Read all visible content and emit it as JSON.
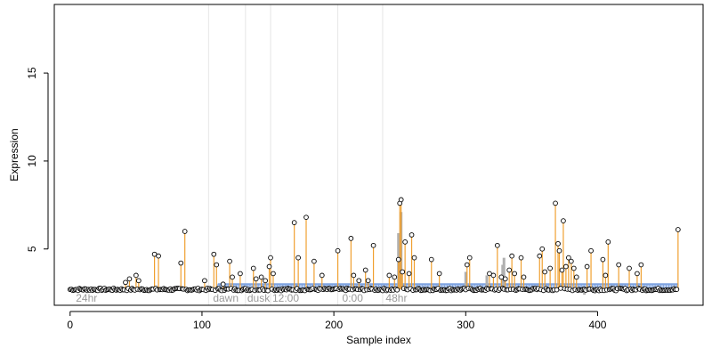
{
  "chart_data": {
    "type": "scatter",
    "xlabel": "Sample index",
    "ylabel": "Expression",
    "xlim": [
      -12,
      480
    ],
    "ylim": [
      1.8,
      18.9
    ],
    "xticks": [
      0,
      100,
      200,
      300,
      400
    ],
    "yticks": [
      5,
      10,
      15
    ],
    "grid": false,
    "baseline": 2.7,
    "background_step_value": 3.0,
    "background_step_start": 112,
    "region_dividers": [
      105,
      133,
      152,
      203,
      237
    ],
    "region_labels": [
      {
        "x": 3,
        "label": "24hr"
      },
      {
        "x": 107,
        "label": "dawn"
      },
      {
        "x": 133,
        "label": "dusk"
      },
      {
        "x": 152,
        "label": "12:00"
      },
      {
        "x": 205,
        "label": "0:00"
      },
      {
        "x": 238,
        "label": "48hr"
      }
    ],
    "peaks": [
      {
        "x": 42,
        "y": 3.1
      },
      {
        "x": 45,
        "y": 3.3
      },
      {
        "x": 50,
        "y": 3.5
      },
      {
        "x": 52,
        "y": 3.2
      },
      {
        "x": 64,
        "y": 4.7
      },
      {
        "x": 67,
        "y": 4.6
      },
      {
        "x": 84,
        "y": 4.2
      },
      {
        "x": 87,
        "y": 6.0
      },
      {
        "x": 102,
        "y": 3.2
      },
      {
        "x": 109,
        "y": 4.7
      },
      {
        "x": 111,
        "y": 4.1
      },
      {
        "x": 116,
        "y": 3.0
      },
      {
        "x": 121,
        "y": 4.3
      },
      {
        "x": 123,
        "y": 3.4
      },
      {
        "x": 129,
        "y": 3.6
      },
      {
        "x": 139,
        "y": 3.9
      },
      {
        "x": 141,
        "y": 3.3
      },
      {
        "x": 145,
        "y": 3.4
      },
      {
        "x": 148,
        "y": 3.2
      },
      {
        "x": 151,
        "y": 4.0
      },
      {
        "x": 152,
        "y": 4.5
      },
      {
        "x": 154,
        "y": 3.6
      },
      {
        "x": 170,
        "y": 6.5
      },
      {
        "x": 173,
        "y": 4.5
      },
      {
        "x": 179,
        "y": 6.8
      },
      {
        "x": 185,
        "y": 4.3
      },
      {
        "x": 191,
        "y": 3.5
      },
      {
        "x": 203,
        "y": 4.9
      },
      {
        "x": 213,
        "y": 5.6
      },
      {
        "x": 215,
        "y": 3.5
      },
      {
        "x": 219,
        "y": 3.2
      },
      {
        "x": 224,
        "y": 3.8
      },
      {
        "x": 226,
        "y": 3.2
      },
      {
        "x": 230,
        "y": 5.2
      },
      {
        "x": 242,
        "y": 3.5
      },
      {
        "x": 246,
        "y": 3.4
      },
      {
        "x": 249,
        "y": 4.4
      },
      {
        "x": 250,
        "y": 7.6
      },
      {
        "x": 251,
        "y": 7.8
      },
      {
        "x": 252,
        "y": 3.7
      },
      {
        "x": 254,
        "y": 5.4
      },
      {
        "x": 257,
        "y": 3.6
      },
      {
        "x": 259,
        "y": 5.8
      },
      {
        "x": 261,
        "y": 4.5
      },
      {
        "x": 274,
        "y": 4.4
      },
      {
        "x": 280,
        "y": 3.6
      },
      {
        "x": 301,
        "y": 4.1
      },
      {
        "x": 303,
        "y": 4.5
      },
      {
        "x": 318,
        "y": 3.6
      },
      {
        "x": 321,
        "y": 3.5
      },
      {
        "x": 324,
        "y": 5.2
      },
      {
        "x": 327,
        "y": 3.4
      },
      {
        "x": 330,
        "y": 3.3
      },
      {
        "x": 333,
        "y": 3.8
      },
      {
        "x": 335,
        "y": 4.6
      },
      {
        "x": 337,
        "y": 3.6
      },
      {
        "x": 342,
        "y": 4.5
      },
      {
        "x": 344,
        "y": 3.4
      },
      {
        "x": 356,
        "y": 4.6
      },
      {
        "x": 358,
        "y": 5.0
      },
      {
        "x": 360,
        "y": 3.7
      },
      {
        "x": 364,
        "y": 3.9
      },
      {
        "x": 368,
        "y": 7.6
      },
      {
        "x": 370,
        "y": 5.3
      },
      {
        "x": 371,
        "y": 4.9
      },
      {
        "x": 373,
        "y": 3.8
      },
      {
        "x": 374,
        "y": 6.6
      },
      {
        "x": 376,
        "y": 4.0
      },
      {
        "x": 378,
        "y": 4.5
      },
      {
        "x": 380,
        "y": 4.3
      },
      {
        "x": 382,
        "y": 3.9
      },
      {
        "x": 384,
        "y": 3.4
      },
      {
        "x": 392,
        "y": 4.0
      },
      {
        "x": 395,
        "y": 4.9
      },
      {
        "x": 404,
        "y": 4.4
      },
      {
        "x": 406,
        "y": 3.5
      },
      {
        "x": 408,
        "y": 5.4
      },
      {
        "x": 416,
        "y": 4.1
      },
      {
        "x": 424,
        "y": 3.9
      },
      {
        "x": 430,
        "y": 3.6
      },
      {
        "x": 433,
        "y": 4.1
      },
      {
        "x": 461,
        "y": 6.1
      }
    ],
    "gray_bumps": [
      {
        "x": 249,
        "y": 5.9
      },
      {
        "x": 251,
        "y": 7.1
      },
      {
        "x": 300,
        "y": 3.7
      },
      {
        "x": 316,
        "y": 3.5
      },
      {
        "x": 328,
        "y": 4.1
      },
      {
        "x": 329,
        "y": 4.5
      },
      {
        "x": 390,
        "y": 2.4
      }
    ]
  },
  "colors": {
    "peak_stem": "#f0a030",
    "background_step": "#7ea3e0",
    "gray_series": "#b0b0b0",
    "divider": "#e6e6e6",
    "region_label": "#9a9a9a",
    "point_fill": "#ffffff",
    "point_stroke": "#000000"
  }
}
